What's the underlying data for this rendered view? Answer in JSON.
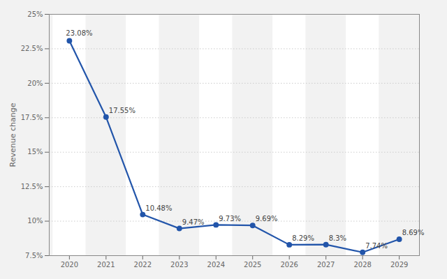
{
  "chart_data": {
    "type": "line",
    "x": [
      2020,
      2021,
      2022,
      2023,
      2024,
      2025,
      2026,
      2027,
      2028,
      2029
    ],
    "values": [
      23.08,
      17.55,
      10.48,
      9.47,
      9.73,
      9.69,
      8.29,
      8.3,
      7.74,
      8.69
    ],
    "value_labels": [
      "23.08%",
      "17.55%",
      "10.48%",
      "9.47%",
      "9.73%",
      "9.69%",
      "8.29%",
      "8.3%",
      "7.74%",
      "8.69%"
    ],
    "data_labels": true,
    "color": "#2255aa",
    "marker": "circle",
    "ylabel": "Revenue change",
    "xlim": [
      2019.45,
      2029.55
    ],
    "xticks": [
      2020,
      2021,
      2022,
      2023,
      2024,
      2025,
      2026,
      2027,
      2028,
      2029
    ],
    "ylim": [
      7.5,
      25.0
    ],
    "yticks": [
      {
        "value": 7.5,
        "label": "7.5%"
      },
      {
        "value": 10.0,
        "label": "10%"
      },
      {
        "value": 12.5,
        "label": "12.5%"
      },
      {
        "value": 15.0,
        "label": "15%"
      },
      {
        "value": 17.5,
        "label": "17.5%"
      },
      {
        "value": 20.0,
        "label": "20%"
      },
      {
        "value": 22.5,
        "label": "22.5%"
      },
      {
        "value": 25.0,
        "label": "25%"
      }
    ],
    "grid": true
  }
}
